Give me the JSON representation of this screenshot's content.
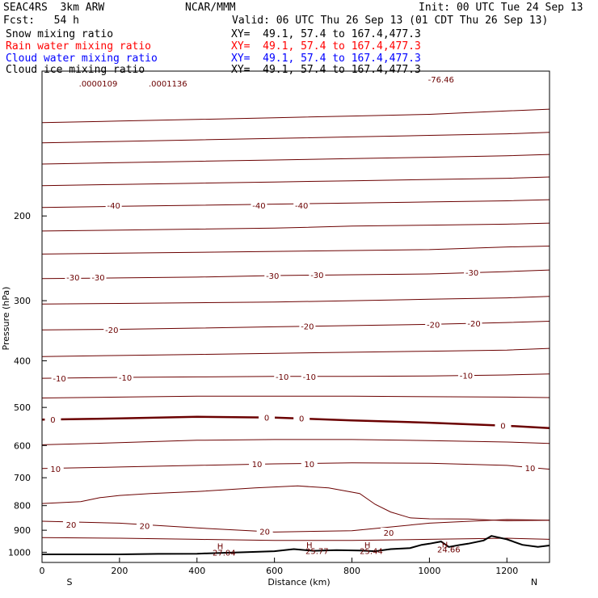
{
  "header": {
    "model": "SEAC4RS  3km ARW",
    "org": "NCAR/MMM",
    "init": "Init: 00 UTC Tue 24 Sep 13",
    "fcst": "Fcst:   54 h",
    "valid": "Valid: 06 UTC Thu 26 Sep 13 (01 CDT Thu 26 Sep 13)",
    "fields": [
      {
        "label": "Snow mixing ratio",
        "xy": "XY=  49.1, 57.4 to 167.4,477.3",
        "color": "#000000"
      },
      {
        "label": "Rain water mixing ratio",
        "xy": "XY=  49.1, 57.4 to 167.4,477.3",
        "color": "#ff0000"
      },
      {
        "label": "Cloud water mixing ratio",
        "xy": "XY=  49.1, 57.4 to 167.4,477.3",
        "color": "#0000ff"
      },
      {
        "label": "Cloud ice mixing ratio",
        "xy": "XY=  49.1, 57.4 to 167.4,477.3",
        "color": "#000000"
      }
    ]
  },
  "chart_data": {
    "type": "line",
    "title": "",
    "xlabel": "Distance (km)",
    "ylabel": "Pressure (hPa)",
    "xlim": [
      0,
      1310
    ],
    "ylim": [
      1050,
      100
    ],
    "y_scale": "log",
    "x_ticks": [
      0,
      200,
      400,
      600,
      800,
      1000,
      1200
    ],
    "y_ticks": [
      200,
      300,
      400,
      500,
      600,
      700,
      800,
      900,
      1000
    ],
    "endpoints": {
      "left": "S",
      "right": "N"
    },
    "contour_color": "#6b0000",
    "terrain_color": "#000000",
    "isotherm_levels": [
      -40,
      -30,
      -20,
      -10,
      0,
      10,
      20
    ],
    "contours": [
      {
        "x": [
          0,
          200,
          400,
          600,
          800,
          1000,
          1200,
          1310
        ],
        "p": [
          128,
          127,
          126,
          125,
          124,
          123,
          121,
          120
        ]
      },
      {
        "x": [
          0,
          200,
          400,
          600,
          800,
          1000,
          1200,
          1310
        ],
        "p": [
          141,
          140,
          139,
          138,
          137,
          136,
          135,
          134
        ]
      },
      {
        "x": [
          0,
          200,
          400,
          600,
          800,
          1000,
          1200,
          1310
        ],
        "p": [
          156,
          155,
          154,
          153,
          152,
          151,
          150,
          149
        ]
      },
      {
        "x": [
          0,
          200,
          400,
          600,
          800,
          1000,
          1200,
          1310
        ],
        "p": [
          173,
          172,
          171,
          170,
          169,
          168,
          167,
          166
        ]
      },
      {
        "x": [
          0,
          200,
          400,
          600,
          800,
          1000,
          1200,
          1310
        ],
        "p": [
          192,
          191,
          190,
          189,
          188,
          187,
          186,
          185
        ]
      },
      {
        "x": [
          0,
          200,
          400,
          600,
          800,
          1000,
          1200,
          1310
        ],
        "p": [
          215,
          214,
          213,
          212,
          210,
          209,
          208,
          207
        ]
      },
      {
        "x": [
          0,
          200,
          400,
          600,
          800,
          1000,
          1200,
          1310
        ],
        "p": [
          240,
          239,
          238,
          237,
          236,
          235,
          232,
          231
        ]
      },
      {
        "x": [
          0,
          200,
          400,
          600,
          800,
          1000,
          1200,
          1310
        ],
        "p": [
          270,
          269,
          268,
          266,
          265,
          264,
          261,
          259
        ]
      },
      {
        "x": [
          0,
          200,
          400,
          600,
          800,
          1000,
          1200,
          1310
        ],
        "p": [
          305,
          304,
          303,
          302,
          300,
          298,
          296,
          294
        ]
      },
      {
        "x": [
          0,
          200,
          400,
          600,
          800,
          1000,
          1200,
          1310
        ],
        "p": [
          345,
          344,
          342,
          340,
          338,
          336,
          333,
          331
        ]
      },
      {
        "x": [
          0,
          200,
          400,
          600,
          800,
          1000,
          1200,
          1310
        ],
        "p": [
          392,
          390,
          388,
          386,
          384,
          382,
          380,
          377
        ]
      },
      {
        "x": [
          0,
          200,
          400,
          600,
          800,
          1000,
          1200,
          1310
        ],
        "p": [
          435,
          433,
          432,
          431,
          431,
          430,
          428,
          426
        ]
      },
      {
        "x": [
          0,
          200,
          400,
          600,
          800,
          1000,
          1200,
          1310
        ],
        "p": [
          478,
          476,
          474,
          474,
          474,
          475,
          476,
          477
        ]
      },
      {
        "x": [
          0,
          200,
          400,
          600,
          800,
          1000,
          1200,
          1310
        ],
        "p": [
          598,
          592,
          585,
          583,
          583,
          586,
          590,
          594
        ]
      },
      {
        "x": [
          0,
          200,
          400,
          600,
          800,
          1000,
          1200,
          1310
        ],
        "p": [
          670,
          665,
          660,
          655,
          652,
          653,
          660,
          672
        ]
      },
      {
        "x": [
          0,
          100,
          150,
          200,
          280,
          400,
          550,
          660,
          740,
          820,
          860,
          900,
          950,
          1000,
          1100,
          1200,
          1310
        ],
        "p": [
          792,
          785,
          770,
          762,
          755,
          748,
          735,
          728,
          735,
          755,
          795,
          825,
          848,
          852,
          853,
          860,
          858
        ]
      },
      {
        "x": [
          0,
          200,
          400,
          600,
          800,
          1000,
          1200,
          1310
        ],
        "p": [
          862,
          870,
          890,
          908,
          902,
          870,
          855,
          858
        ]
      },
      {
        "x": [
          0,
          200,
          400,
          600,
          800,
          1000,
          1200,
          1310
        ],
        "p": [
          932,
          935,
          940,
          945,
          945,
          940,
          935,
          940
        ]
      }
    ],
    "zero_isotherm": {
      "x": [
        0,
        200,
        400,
        600,
        800,
        1000,
        1200,
        1310
      ],
      "p": [
        530,
        527,
        523,
        525,
        532,
        538,
        546,
        552
      ]
    },
    "terrain": {
      "x": [
        0,
        100,
        200,
        300,
        400,
        460,
        520,
        600,
        650,
        700,
        760,
        820,
        860,
        900,
        950,
        980,
        1000,
        1030,
        1050,
        1080,
        1100,
        1140,
        1160,
        1200,
        1240,
        1280,
        1310
      ],
      "p": [
        1010,
        1010,
        1010,
        1008,
        1007,
        1003,
        1000,
        995,
        985,
        993,
        990,
        992,
        995,
        985,
        980,
        965,
        960,
        950,
        975,
        965,
        960,
        945,
        925,
        940,
        965,
        975,
        968
      ]
    },
    "contour_labels": [
      {
        "text": "-40",
        "x": 185,
        "p": 190
      },
      {
        "text": "-40",
        "x": 560,
        "p": 190
      },
      {
        "text": "-40",
        "x": 670,
        "p": 190
      },
      {
        "text": "-30",
        "x": 80,
        "p": 268
      },
      {
        "text": "-30",
        "x": 145,
        "p": 268
      },
      {
        "text": "-30",
        "x": 595,
        "p": 266
      },
      {
        "text": "-30",
        "x": 710,
        "p": 265
      },
      {
        "text": "-30",
        "x": 1110,
        "p": 262
      },
      {
        "text": "-20",
        "x": 180,
        "p": 345
      },
      {
        "text": "-20",
        "x": 685,
        "p": 339
      },
      {
        "text": "-20",
        "x": 1010,
        "p": 336
      },
      {
        "text": "-20",
        "x": 1115,
        "p": 334
      },
      {
        "text": "-10",
        "x": 45,
        "p": 435
      },
      {
        "text": "-10",
        "x": 215,
        "p": 433
      },
      {
        "text": "-10",
        "x": 620,
        "p": 431
      },
      {
        "text": "-10",
        "x": 690,
        "p": 431
      },
      {
        "text": "-10",
        "x": 1095,
        "p": 429
      },
      {
        "text": "0",
        "x": 28,
        "p": 530
      },
      {
        "text": "0",
        "x": 580,
        "p": 524
      },
      {
        "text": "0",
        "x": 670,
        "p": 526
      },
      {
        "text": "0",
        "x": 1190,
        "p": 545
      },
      {
        "text": "10",
        "x": 35,
        "p": 670
      },
      {
        "text": "10",
        "x": 555,
        "p": 655
      },
      {
        "text": "10",
        "x": 690,
        "p": 655
      },
      {
        "text": "10",
        "x": 1260,
        "p": 668
      },
      {
        "text": "20",
        "x": 75,
        "p": 875
      },
      {
        "text": "20",
        "x": 265,
        "p": 880
      },
      {
        "text": "20",
        "x": 575,
        "p": 905
      },
      {
        "text": "20",
        "x": 895,
        "p": 910
      }
    ],
    "axis_annotations": [
      {
        "text": ".0000109",
        "x": 145,
        "p": 106
      },
      {
        "text": ".0001136",
        "x": 325,
        "p": 106
      },
      {
        "text": "-76.46",
        "x": 1030,
        "p": 104
      },
      {
        "text": "27.04",
        "x": 470,
        "p": 1000
      },
      {
        "text": "25.77",
        "x": 710,
        "p": 992
      },
      {
        "text": "25.44",
        "x": 850,
        "p": 992
      },
      {
        "text": "24.66",
        "x": 1050,
        "p": 986
      }
    ],
    "high_markers": [
      {
        "text": "H",
        "x": 460,
        "p": 970
      },
      {
        "text": "H",
        "x": 690,
        "p": 965
      },
      {
        "text": "H",
        "x": 840,
        "p": 965
      },
      {
        "text": "H",
        "x": 1040,
        "p": 962
      }
    ],
    "legend": "top-left"
  }
}
